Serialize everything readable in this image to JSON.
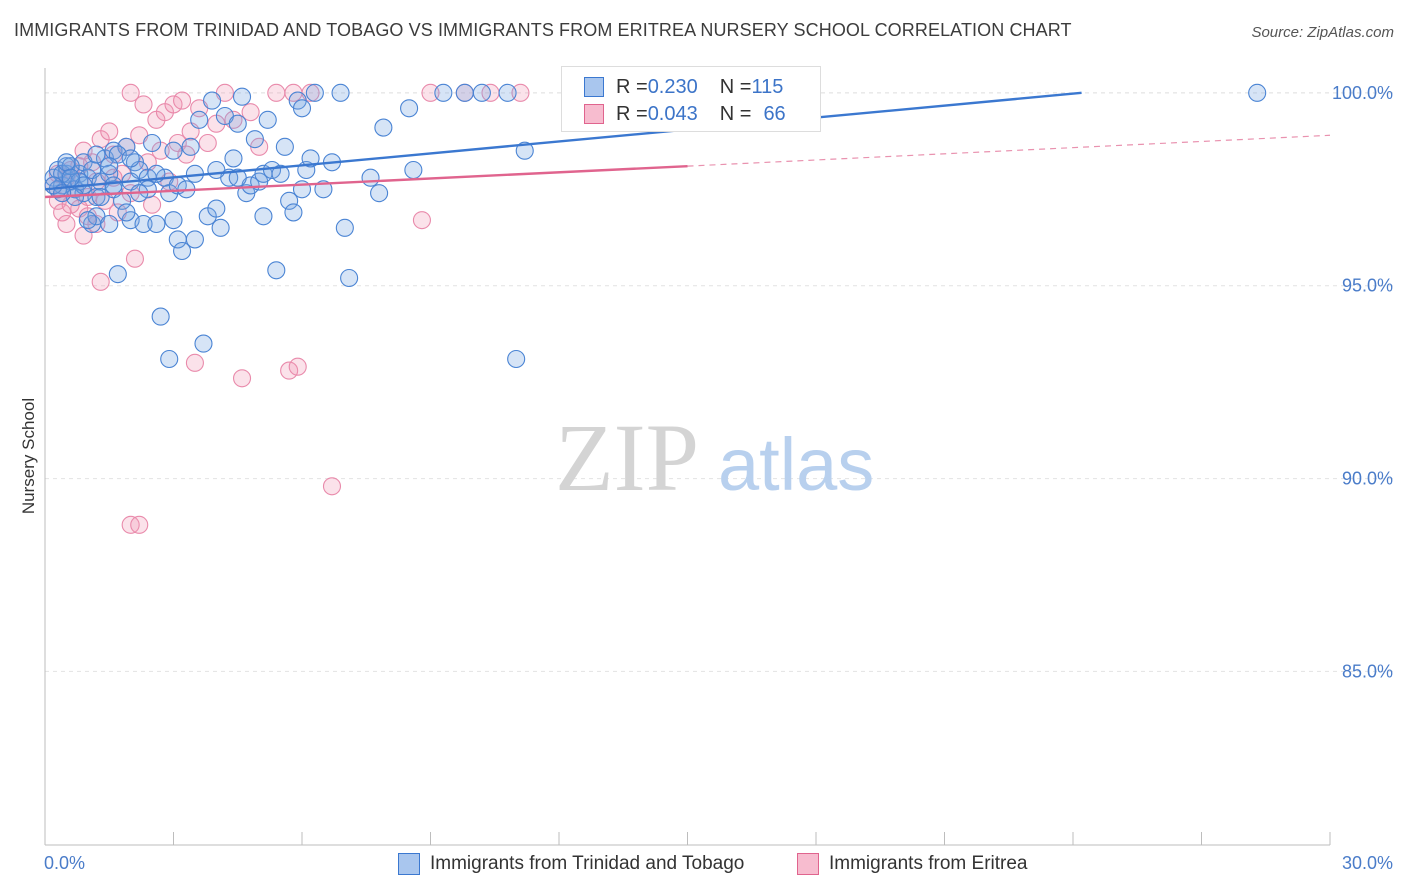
{
  "header": {
    "title": "IMMIGRANTS FROM TRINIDAD AND TOBAGO VS IMMIGRANTS FROM ERITREA NURSERY SCHOOL CORRELATION CHART",
    "source": "Source: ZipAtlas.com"
  },
  "watermark": {
    "zip": "ZIP",
    "atlas": "atlas"
  },
  "legend_top": {
    "rows": [
      {
        "r_label": "R = ",
        "r_value": "0.230",
        "n_label": "N = ",
        "n_value": "115"
      },
      {
        "r_label": "R = ",
        "r_value": "0.043",
        "n_label": "N = ",
        "n_value": "66"
      }
    ]
  },
  "legend_bottom": {
    "blue_label": "Immigrants from Trinidad and Tobago",
    "pink_label": "Immigrants from Eritrea"
  },
  "colors": {
    "blue": "#3b78d0",
    "pink": "#e0648e",
    "blue_fill": "#a9c6ee",
    "pink_fill": "#f7bccf",
    "tick_text": "#4a7cc9"
  },
  "chart_data": {
    "type": "scatter",
    "title": "IMMIGRANTS FROM TRINIDAD AND TOBAGO VS IMMIGRANTS FROM ERITREA NURSERY SCHOOL CORRELATION CHART",
    "xlabel": "",
    "ylabel": "Nursery School",
    "xlim": [
      0,
      30
    ],
    "ylim": [
      80.5,
      100.8
    ],
    "x_tick_labels": [
      "0.0%",
      "30.0%"
    ],
    "y_ticks": [
      85,
      90,
      95,
      100
    ],
    "y_tick_labels": [
      "85.0%",
      "90.0%",
      "95.0%",
      "100.0%"
    ],
    "grid": true,
    "legend_position": "top-center",
    "series": [
      {
        "name": "Immigrants from Trinidad and Tobago",
        "color": "#3b78d0",
        "R": 0.23,
        "N": 115,
        "trend": {
          "x": [
            0,
            24.2
          ],
          "y": [
            97.5,
            100.0
          ],
          "dashed_to": [
            24.2,
            30
          ],
          "dashed_y": [
            100.0,
            100.6
          ]
        },
        "points": [
          [
            0.2,
            97.8
          ],
          [
            0.3,
            98.0
          ],
          [
            0.4,
            97.6
          ],
          [
            0.5,
            97.9
          ],
          [
            0.5,
            98.1
          ],
          [
            0.6,
            97.7
          ],
          [
            0.7,
            97.5
          ],
          [
            0.8,
            97.9
          ],
          [
            0.9,
            98.2
          ],
          [
            0.9,
            97.4
          ],
          [
            1.0,
            97.8
          ],
          [
            1.1,
            98.0
          ],
          [
            1.1,
            96.6
          ],
          [
            1.2,
            97.3
          ],
          [
            1.2,
            96.8
          ],
          [
            1.3,
            97.7
          ],
          [
            1.4,
            98.3
          ],
          [
            1.5,
            97.9
          ],
          [
            1.5,
            96.6
          ],
          [
            1.6,
            98.5
          ],
          [
            1.6,
            97.5
          ],
          [
            1.7,
            95.3
          ],
          [
            1.8,
            97.2
          ],
          [
            1.9,
            98.6
          ],
          [
            2.0,
            97.7
          ],
          [
            2.0,
            96.7
          ],
          [
            2.1,
            98.2
          ],
          [
            2.2,
            98.0
          ],
          [
            2.3,
            96.6
          ],
          [
            2.4,
            97.8
          ],
          [
            2.5,
            98.7
          ],
          [
            2.6,
            96.6
          ],
          [
            1.7,
            98.4
          ],
          [
            1.9,
            96.9
          ],
          [
            2.7,
            94.2
          ],
          [
            2.8,
            97.8
          ],
          [
            2.9,
            93.1
          ],
          [
            2.9,
            97.4
          ],
          [
            3.0,
            96.7
          ],
          [
            3.1,
            97.6
          ],
          [
            3.1,
            96.2
          ],
          [
            3.2,
            95.9
          ],
          [
            3.3,
            97.5
          ],
          [
            3.4,
            98.6
          ],
          [
            3.5,
            96.2
          ],
          [
            3.6,
            99.3
          ],
          [
            3.7,
            93.5
          ],
          [
            3.8,
            96.8
          ],
          [
            3.9,
            99.8
          ],
          [
            4.0,
            97.0
          ],
          [
            4.1,
            96.5
          ],
          [
            4.2,
            99.4
          ],
          [
            4.3,
            97.8
          ],
          [
            4.4,
            98.3
          ],
          [
            4.5,
            99.2
          ],
          [
            4.6,
            99.9
          ],
          [
            4.7,
            97.4
          ],
          [
            4.8,
            97.6
          ],
          [
            4.9,
            98.8
          ],
          [
            5.0,
            97.7
          ],
          [
            5.1,
            97.9
          ],
          [
            5.2,
            99.3
          ],
          [
            5.3,
            98.0
          ],
          [
            5.4,
            95.4
          ],
          [
            5.5,
            97.9
          ],
          [
            5.6,
            98.6
          ],
          [
            5.7,
            97.2
          ],
          [
            5.8,
            96.9
          ],
          [
            5.9,
            99.8
          ],
          [
            6.0,
            99.6
          ],
          [
            6.1,
            98.0
          ],
          [
            6.2,
            98.3
          ],
          [
            6.3,
            100.0
          ],
          [
            6.5,
            97.5
          ],
          [
            6.7,
            98.2
          ],
          [
            6.9,
            100.0
          ],
          [
            7.0,
            96.5
          ],
          [
            7.1,
            95.2
          ],
          [
            7.6,
            97.8
          ],
          [
            7.8,
            97.4
          ],
          [
            7.9,
            99.1
          ],
          [
            8.5,
            99.6
          ],
          [
            8.6,
            98.0
          ],
          [
            9.3,
            100.0
          ],
          [
            9.8,
            100.0
          ],
          [
            10.2,
            100.0
          ],
          [
            10.8,
            100.0
          ],
          [
            11.0,
            93.1
          ],
          [
            11.2,
            98.5
          ],
          [
            1.0,
            96.7
          ],
          [
            0.4,
            97.9
          ],
          [
            0.6,
            98.1
          ],
          [
            2.4,
            97.5
          ],
          [
            1.3,
            97.3
          ],
          [
            5.1,
            96.8
          ],
          [
            28.3,
            100.0
          ],
          [
            0.3,
            97.5
          ],
          [
            0.8,
            97.7
          ],
          [
            3.5,
            97.9
          ],
          [
            4.0,
            98.0
          ],
          [
            1.5,
            98.1
          ],
          [
            2.2,
            97.4
          ],
          [
            0.5,
            98.2
          ],
          [
            0.9,
            97.6
          ],
          [
            1.2,
            98.4
          ],
          [
            0.7,
            97.3
          ],
          [
            2.0,
            98.3
          ],
          [
            3.0,
            98.5
          ],
          [
            0.2,
            97.6
          ],
          [
            0.4,
            97.4
          ],
          [
            1.6,
            97.6
          ],
          [
            2.6,
            97.9
          ],
          [
            4.5,
            97.8
          ],
          [
            6.0,
            97.5
          ],
          [
            0.6,
            97.8
          ]
        ]
      },
      {
        "name": "Immigrants from Eritrea",
        "color": "#e0648e",
        "R": 0.043,
        "N": 66,
        "trend": {
          "x": [
            0,
            15.0
          ],
          "y": [
            97.3,
            98.1
          ],
          "dashed_to": [
            15.0,
            30
          ],
          "dashed_y": [
            98.1,
            98.9
          ]
        },
        "points": [
          [
            0.2,
            97.6
          ],
          [
            0.3,
            97.2
          ],
          [
            0.4,
            96.9
          ],
          [
            0.5,
            97.8
          ],
          [
            0.5,
            96.6
          ],
          [
            0.6,
            98.0
          ],
          [
            0.7,
            97.5
          ],
          [
            0.8,
            97.0
          ],
          [
            0.9,
            96.3
          ],
          [
            1.0,
            96.8
          ],
          [
            1.0,
            97.3
          ],
          [
            1.1,
            98.2
          ],
          [
            1.2,
            97.7
          ],
          [
            1.3,
            95.1
          ],
          [
            1.3,
            98.8
          ],
          [
            1.4,
            97.2
          ],
          [
            1.5,
            99.0
          ],
          [
            1.6,
            98.4
          ],
          [
            1.7,
            96.9
          ],
          [
            1.8,
            97.9
          ],
          [
            1.9,
            98.6
          ],
          [
            2.0,
            97.4
          ],
          [
            2.1,
            95.7
          ],
          [
            2.2,
            98.9
          ],
          [
            2.3,
            99.7
          ],
          [
            2.4,
            98.2
          ],
          [
            2.5,
            97.1
          ],
          [
            2.6,
            99.3
          ],
          [
            2.7,
            98.5
          ],
          [
            2.8,
            99.5
          ],
          [
            2.9,
            97.7
          ],
          [
            3.0,
            99.7
          ],
          [
            3.1,
            98.7
          ],
          [
            3.2,
            99.8
          ],
          [
            3.3,
            98.4
          ],
          [
            3.4,
            99.0
          ],
          [
            3.5,
            93.0
          ],
          [
            3.6,
            99.6
          ],
          [
            3.8,
            98.7
          ],
          [
            4.0,
            99.2
          ],
          [
            4.2,
            100.0
          ],
          [
            4.4,
            99.3
          ],
          [
            4.6,
            92.6
          ],
          [
            4.8,
            99.5
          ],
          [
            5.0,
            98.6
          ],
          [
            5.4,
            100.0
          ],
          [
            5.7,
            92.8
          ],
          [
            5.8,
            100.0
          ],
          [
            5.9,
            92.9
          ],
          [
            6.2,
            100.0
          ],
          [
            6.7,
            89.8
          ],
          [
            2.0,
            100.0
          ],
          [
            2.0,
            88.8
          ],
          [
            2.2,
            88.8
          ],
          [
            8.8,
            96.7
          ],
          [
            9.0,
            100.0
          ],
          [
            9.8,
            100.0
          ],
          [
            10.4,
            100.0
          ],
          [
            11.1,
            100.0
          ],
          [
            0.3,
            97.9
          ],
          [
            0.6,
            97.1
          ],
          [
            0.9,
            98.5
          ],
          [
            1.2,
            96.6
          ],
          [
            0.4,
            97.4
          ],
          [
            1.6,
            97.8
          ],
          [
            0.8,
            98.1
          ]
        ]
      }
    ]
  }
}
